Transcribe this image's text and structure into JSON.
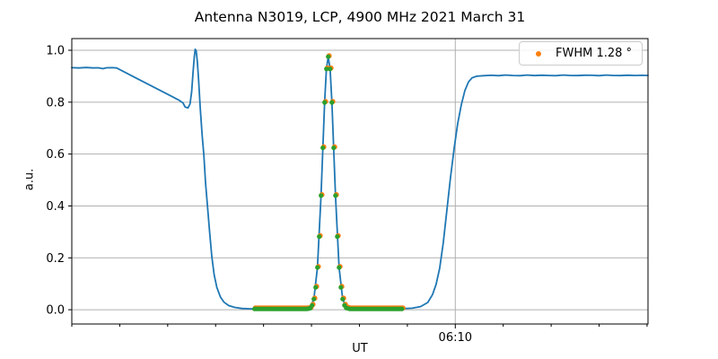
{
  "chart_data": {
    "type": "line",
    "title": "Antenna N3019, LCP, 4900 MHz 2021 March 31",
    "xlabel": "UT",
    "ylabel": "a.u.",
    "x_unit": "minutes after 05:54 UT",
    "xlim": [
      0,
      24.04
    ],
    "ylim": [
      -0.055,
      1.045
    ],
    "yticks": [
      0.0,
      0.2,
      0.4,
      0.6,
      0.8,
      1.0
    ],
    "x_minor_ticks": [
      0,
      2,
      4,
      6,
      8,
      10,
      12,
      14,
      18,
      20,
      22,
      24
    ],
    "x_major_ticks": [
      {
        "t": 16,
        "label": "06:10"
      }
    ],
    "grid": true,
    "legend": {
      "label": "FWHM 1.28 °",
      "marker_color": "#ff7f0e",
      "position": "upper right"
    },
    "colors": {
      "grid": "#b0b0b0",
      "spine": "#000000",
      "background": "#ffffff"
    },
    "line_series": {
      "name": "antenna-drift-scan-signal",
      "color": "#1f77b4",
      "points": [
        [
          0,
          0.933
        ],
        [
          0.3,
          0.932
        ],
        [
          0.6,
          0.9335
        ],
        [
          0.9,
          0.932
        ],
        [
          1.1,
          0.9325
        ],
        [
          1.3,
          0.929
        ],
        [
          1.45,
          0.9325
        ],
        [
          1.7,
          0.933
        ],
        [
          1.87,
          0.932
        ],
        [
          2.2,
          0.916
        ],
        [
          2.6,
          0.897
        ],
        [
          3.0,
          0.878
        ],
        [
          3.4,
          0.859
        ],
        [
          3.8,
          0.84
        ],
        [
          4.2,
          0.821
        ],
        [
          4.5,
          0.806
        ],
        [
          4.64,
          0.797
        ],
        [
          4.73,
          0.781
        ],
        [
          4.85,
          0.778
        ],
        [
          4.93,
          0.793
        ],
        [
          5.0,
          0.838
        ],
        [
          5.06,
          0.915
        ],
        [
          5.11,
          0.975
        ],
        [
          5.15,
          1.004
        ],
        [
          5.19,
          0.998
        ],
        [
          5.24,
          0.955
        ],
        [
          5.29,
          0.885
        ],
        [
          5.36,
          0.778
        ],
        [
          5.44,
          0.67
        ],
        [
          5.51,
          0.598
        ],
        [
          5.58,
          0.49
        ],
        [
          5.66,
          0.398
        ],
        [
          5.75,
          0.298
        ],
        [
          5.84,
          0.205
        ],
        [
          5.94,
          0.135
        ],
        [
          6.05,
          0.086
        ],
        [
          6.2,
          0.049
        ],
        [
          6.35,
          0.029
        ],
        [
          6.55,
          0.016
        ],
        [
          6.8,
          0.009
        ],
        [
          7.1,
          0.005
        ],
        [
          7.5,
          0.0035
        ],
        [
          8.0,
          0.003
        ],
        [
          8.7,
          0.003
        ],
        [
          9.4,
          0.0035
        ],
        [
          9.8,
          0.005
        ],
        [
          9.95,
          0.009
        ],
        [
          10.1,
          0.041
        ],
        [
          10.25,
          0.163
        ],
        [
          10.4,
          0.44
        ],
        [
          10.55,
          0.8
        ],
        [
          10.625,
          0.928
        ],
        [
          10.7,
          0.975
        ],
        [
          10.775,
          0.928
        ],
        [
          10.85,
          0.8
        ],
        [
          11.0,
          0.44
        ],
        [
          11.15,
          0.163
        ],
        [
          11.3,
          0.041
        ],
        [
          11.45,
          0.01
        ],
        [
          11.6,
          0.005
        ],
        [
          11.9,
          0.0035
        ],
        [
          12.5,
          0.003
        ],
        [
          13.2,
          0.003
        ],
        [
          13.8,
          0.004
        ],
        [
          14.2,
          0.006
        ],
        [
          14.55,
          0.012
        ],
        [
          14.85,
          0.028
        ],
        [
          15.05,
          0.058
        ],
        [
          15.2,
          0.098
        ],
        [
          15.35,
          0.16
        ],
        [
          15.5,
          0.258
        ],
        [
          15.65,
          0.383
        ],
        [
          15.8,
          0.508
        ],
        [
          15.95,
          0.622
        ],
        [
          16.1,
          0.718
        ],
        [
          16.25,
          0.79
        ],
        [
          16.4,
          0.845
        ],
        [
          16.55,
          0.878
        ],
        [
          16.7,
          0.894
        ],
        [
          16.9,
          0.9
        ],
        [
          17.2,
          0.902
        ],
        [
          17.5,
          0.9035
        ],
        [
          17.8,
          0.902
        ],
        [
          18.1,
          0.9045
        ],
        [
          18.4,
          0.903
        ],
        [
          18.7,
          0.902
        ],
        [
          19.0,
          0.9045
        ],
        [
          19.3,
          0.9025
        ],
        [
          19.6,
          0.904
        ],
        [
          19.9,
          0.903
        ],
        [
          20.2,
          0.902
        ],
        [
          20.5,
          0.9045
        ],
        [
          20.8,
          0.903
        ],
        [
          21.1,
          0.9025
        ],
        [
          21.4,
          0.904
        ],
        [
          21.7,
          0.9035
        ],
        [
          22.0,
          0.902
        ],
        [
          22.3,
          0.9045
        ],
        [
          22.6,
          0.903
        ],
        [
          22.9,
          0.9025
        ],
        [
          23.2,
          0.904
        ],
        [
          23.5,
          0.903
        ],
        [
          23.8,
          0.9035
        ],
        [
          24.04,
          0.903
        ]
      ]
    },
    "scatter_series": [
      {
        "name": "measured-samples",
        "color": "#ff7f0e"
      },
      {
        "name": "gaussian-fit-samples",
        "color": "#2ca02c"
      }
    ],
    "scatter_points": [
      [
        7.625,
        0.003
      ],
      [
        7.7,
        0.003
      ],
      [
        7.775,
        0.003
      ],
      [
        7.85,
        0.003
      ],
      [
        7.925,
        0.003
      ],
      [
        8.0,
        0.003
      ],
      [
        8.075,
        0.003
      ],
      [
        8.15,
        0.003
      ],
      [
        8.225,
        0.003
      ],
      [
        8.3,
        0.003
      ],
      [
        8.375,
        0.003
      ],
      [
        8.45,
        0.003
      ],
      [
        8.525,
        0.003
      ],
      [
        8.6,
        0.003
      ],
      [
        8.675,
        0.003
      ],
      [
        8.75,
        0.003
      ],
      [
        8.825,
        0.003
      ],
      [
        8.9,
        0.003
      ],
      [
        8.975,
        0.003
      ],
      [
        9.05,
        0.003
      ],
      [
        9.125,
        0.003
      ],
      [
        9.2,
        0.003
      ],
      [
        9.275,
        0.003
      ],
      [
        9.35,
        0.003
      ],
      [
        9.425,
        0.003
      ],
      [
        9.5,
        0.003
      ],
      [
        9.575,
        0.003
      ],
      [
        9.65,
        0.003
      ],
      [
        9.725,
        0.003
      ],
      [
        9.8,
        0.003
      ],
      [
        9.875,
        0.004
      ],
      [
        9.95,
        0.006
      ],
      [
        10.025,
        0.017
      ],
      [
        10.1,
        0.041
      ],
      [
        10.175,
        0.086
      ],
      [
        10.25,
        0.163
      ],
      [
        10.325,
        0.282
      ],
      [
        10.4,
        0.44
      ],
      [
        10.475,
        0.624
      ],
      [
        10.55,
        0.799
      ],
      [
        10.625,
        0.928
      ],
      [
        10.7,
        0.975
      ],
      [
        10.775,
        0.928
      ],
      [
        10.85,
        0.799
      ],
      [
        10.925,
        0.624
      ],
      [
        11.0,
        0.44
      ],
      [
        11.075,
        0.282
      ],
      [
        11.15,
        0.163
      ],
      [
        11.225,
        0.086
      ],
      [
        11.3,
        0.041
      ],
      [
        11.375,
        0.017
      ],
      [
        11.45,
        0.007
      ],
      [
        11.525,
        0.005
      ],
      [
        11.6,
        0.003
      ],
      [
        11.675,
        0.003
      ],
      [
        11.75,
        0.003
      ],
      [
        11.825,
        0.003
      ],
      [
        11.9,
        0.003
      ],
      [
        11.975,
        0.003
      ],
      [
        12.05,
        0.003
      ],
      [
        12.125,
        0.003
      ],
      [
        12.2,
        0.003
      ],
      [
        12.275,
        0.003
      ],
      [
        12.35,
        0.003
      ],
      [
        12.425,
        0.003
      ],
      [
        12.5,
        0.003
      ],
      [
        12.575,
        0.003
      ],
      [
        12.65,
        0.003
      ],
      [
        12.725,
        0.003
      ],
      [
        12.8,
        0.003
      ],
      [
        12.875,
        0.003
      ],
      [
        12.95,
        0.003
      ],
      [
        13.025,
        0.003
      ],
      [
        13.1,
        0.003
      ],
      [
        13.175,
        0.003
      ],
      [
        13.25,
        0.003
      ],
      [
        13.325,
        0.003
      ],
      [
        13.4,
        0.003
      ],
      [
        13.475,
        0.003
      ],
      [
        13.55,
        0.003
      ],
      [
        13.625,
        0.003
      ],
      [
        13.7,
        0.003
      ],
      [
        13.775,
        0.003
      ]
    ]
  }
}
